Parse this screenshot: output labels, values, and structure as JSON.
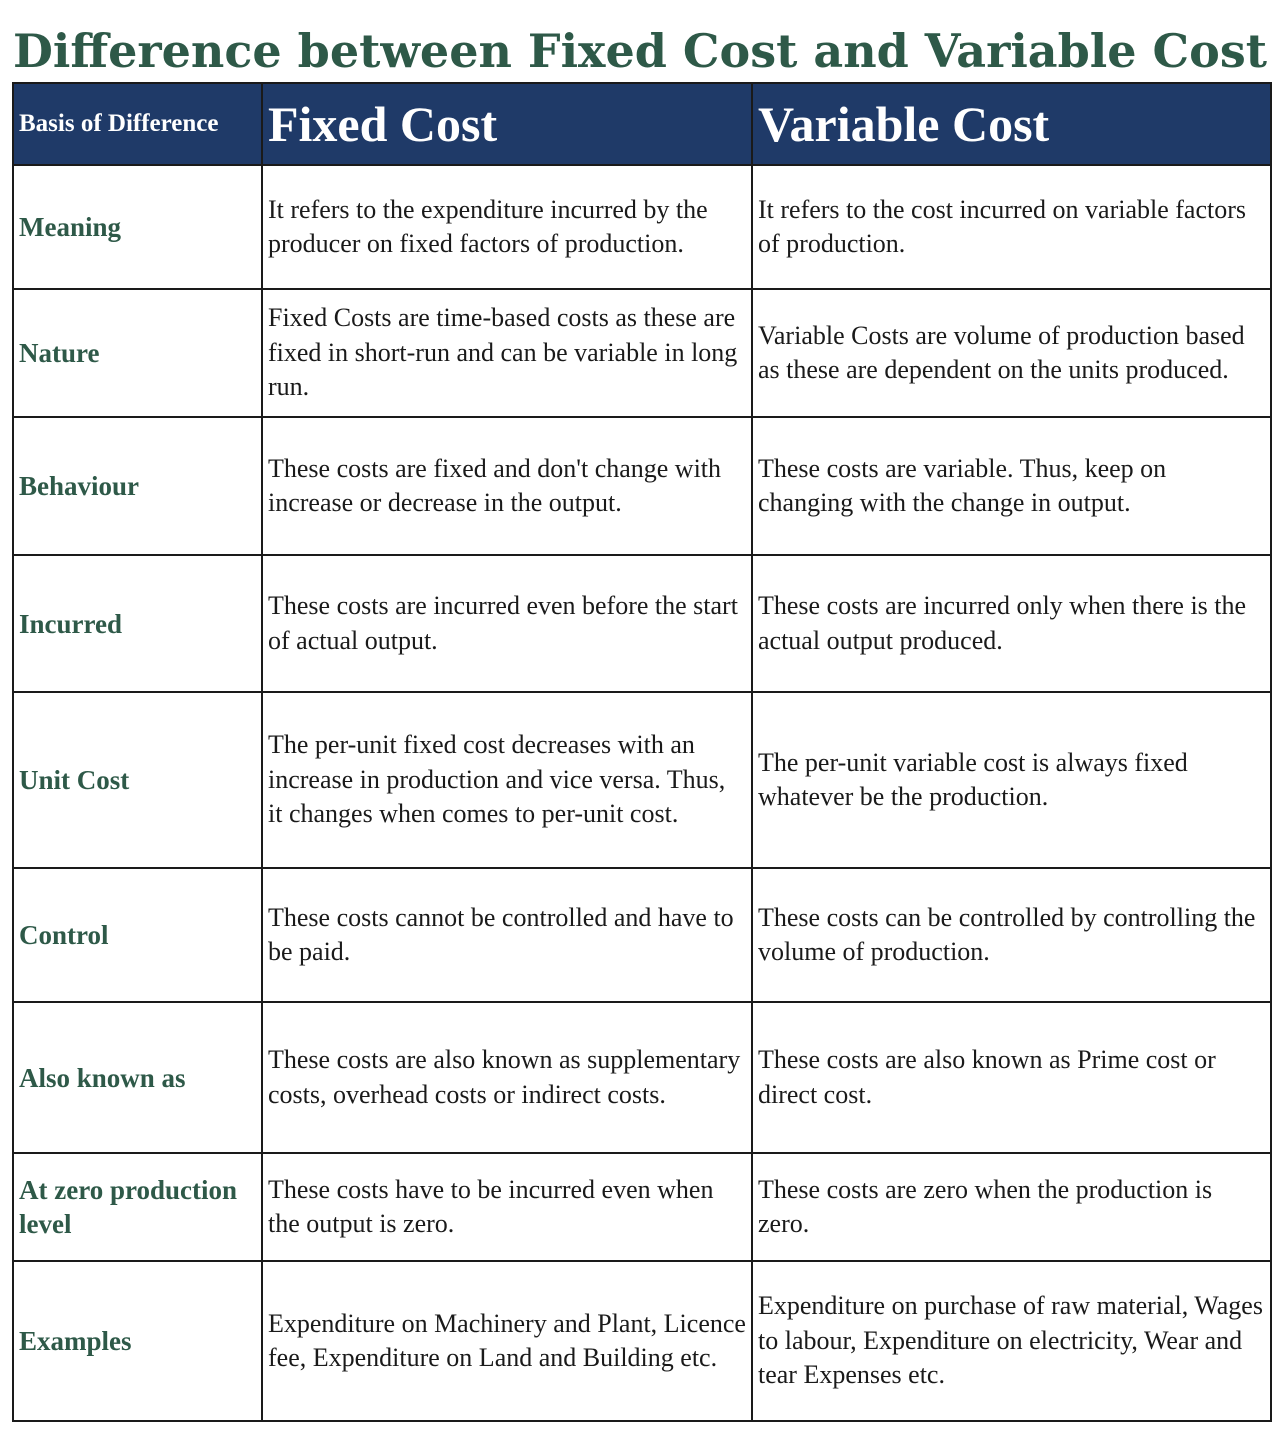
{
  "title": "Difference between Fixed Cost and Variable Cost",
  "header": {
    "basis": "Basis of Difference",
    "fixed": "Fixed Cost",
    "variable": "Variable Cost"
  },
  "rows": [
    {
      "basis": "Meaning",
      "fixed": "It refers to the expenditure incurred by the producer on fixed factors of production.",
      "variable": "It refers to the cost incurred on variable factors of production."
    },
    {
      "basis": "Nature",
      "fixed": "Fixed Costs are time-based costs as these are fixed in short-run and can be variable in long run.",
      "variable": "Variable Costs are volume of production based as these are dependent on the units produced."
    },
    {
      "basis": "Behaviour",
      "fixed": "These costs are fixed and don't change with increase or decrease in the output.",
      "variable": "These costs are variable. Thus, keep on changing with the change in output."
    },
    {
      "basis": "Incurred",
      "fixed": "These costs are incurred even before the start of actual output.",
      "variable": "These costs are incurred only when there is the actual output produced."
    },
    {
      "basis": "Unit Cost",
      "fixed": "The per-unit fixed cost decreases with an increase in production and vice versa. Thus, it changes when comes to per-unit cost.",
      "variable": "The per-unit variable cost is always fixed whatever be the production."
    },
    {
      "basis": "Control",
      "fixed": "These costs cannot be controlled and have to be paid.",
      "variable": "These costs can be controlled by controlling the volume of production."
    },
    {
      "basis": "Also known as",
      "fixed": "These costs are also known as supplementary costs, overhead costs or indirect costs.",
      "variable": "These costs are also known as Prime cost or direct cost."
    },
    {
      "basis": "At zero production level",
      "fixed": "These costs have to be incurred even when the output is zero.",
      "variable": "These costs are zero when the production is zero."
    },
    {
      "basis": "Examples",
      "fixed": "Expenditure on Machinery and Plant, Licence fee, Expenditure on Land and Building etc.",
      "variable": "Expenditure on purchase of raw material, Wages to labour, Expenditure on electricity, Wear and tear Expenses etc."
    }
  ],
  "colors": {
    "title": "#2e5948",
    "header_bg": "#1f3a68",
    "header_text": "#ffffff",
    "basis_text": "#2e5948",
    "border": "#1a1a1a"
  }
}
